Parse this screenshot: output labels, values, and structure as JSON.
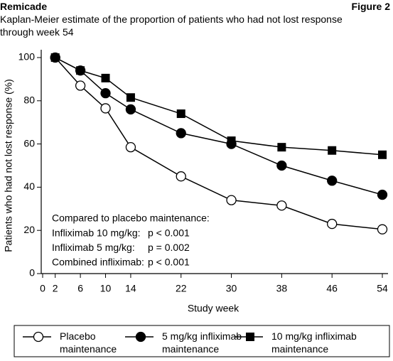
{
  "header": {
    "title": "Remicade",
    "figure": "Figure 2"
  },
  "chart_data": {
    "type": "line",
    "subtitle": "Kaplan-Meier estimate of the proportion of patients who had not lost response through week 54",
    "x_label": "Study week",
    "y_label": "Patients who had not lost response (%)",
    "x": [
      2,
      6,
      10,
      14,
      22,
      30,
      38,
      46,
      54
    ],
    "series": [
      {
        "name": "Placebo maintenance",
        "color": "#000000",
        "marker": "open-circle",
        "values": [
          100,
          87,
          76.5,
          58.5,
          45,
          34,
          31.5,
          23,
          20.5
        ]
      },
      {
        "name": "5 mg/kg infliximab maintenance",
        "color": "#000000",
        "marker": "filled-circle",
        "values": [
          100,
          94,
          83.5,
          76,
          65,
          60,
          50,
          43,
          36.5
        ]
      },
      {
        "name": "10 mg/kg infliximab maintenance",
        "color": "#000000",
        "marker": "square",
        "values": [
          100,
          94,
          90.5,
          81.5,
          74,
          61.5,
          58.5,
          57,
          55
        ]
      }
    ],
    "xlim": [
      0,
      54
    ],
    "xticks": [
      0,
      2,
      6,
      10,
      14,
      22,
      30,
      38,
      46,
      54
    ],
    "ylim": [
      0,
      100
    ],
    "yticks": [
      0,
      20,
      40,
      60,
      80,
      100
    ],
    "grid": false,
    "legend": "bottom",
    "annotation_title": "Compared to placebo maintenance:",
    "annotations": [
      {
        "label": "Infliximab 10 mg/kg:",
        "p": "p < 0.001"
      },
      {
        "label": "Infliximab 5 mg/kg:",
        "p": "p = 0.002"
      },
      {
        "label": "Combined infliximab:",
        "p": "p < 0.001"
      }
    ]
  }
}
